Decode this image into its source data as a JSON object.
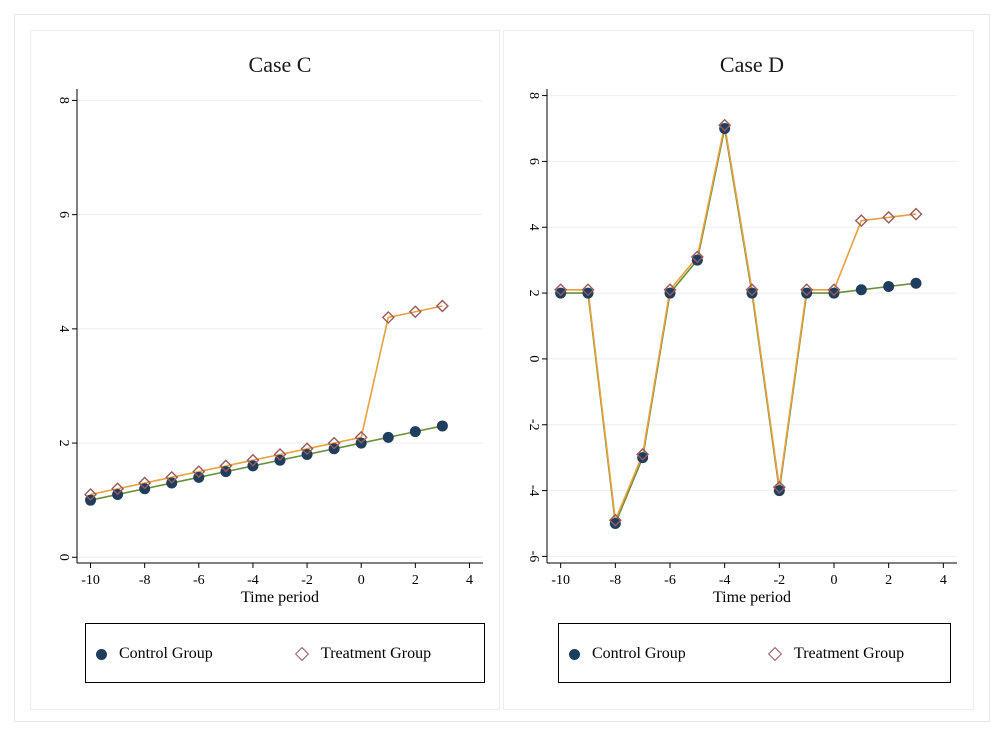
{
  "chart_data": [
    {
      "type": "line",
      "title": "Case C",
      "xlabel": "Time period",
      "ylabel": "",
      "xlim": [
        -10.5,
        4.5
      ],
      "ylim": [
        -0.1,
        8.2
      ],
      "xticks": [
        -10,
        -8,
        -6,
        -4,
        -2,
        0,
        2,
        4
      ],
      "yticks": [
        0,
        2,
        4,
        6,
        8
      ],
      "x": [
        -10,
        -9,
        -8,
        -7,
        -6,
        -5,
        -4,
        -3,
        -2,
        -1,
        0,
        1,
        2,
        3
      ],
      "series": [
        {
          "name": "Control Group",
          "marker": "dot",
          "color": "#1f3d5c",
          "line_color": "#6b8e3a",
          "values": [
            1.0,
            1.1,
            1.2,
            1.3,
            1.4,
            1.5,
            1.6,
            1.7,
            1.8,
            1.9,
            2.0,
            2.1,
            2.2,
            2.3
          ]
        },
        {
          "name": "Treatment Group",
          "marker": "diamond",
          "color": "#9a5a5a",
          "line_color": "#e8a040",
          "values": [
            1.1,
            1.2,
            1.3,
            1.4,
            1.5,
            1.6,
            1.7,
            1.8,
            1.9,
            2.0,
            2.1,
            4.2,
            4.3,
            4.4
          ]
        }
      ],
      "grid": true,
      "legend": "bottom"
    },
    {
      "type": "line",
      "title": "Case D",
      "xlabel": "Time period",
      "ylabel": "",
      "xlim": [
        -10.5,
        4.5
      ],
      "ylim": [
        -6.2,
        8.2
      ],
      "xticks": [
        -10,
        -8,
        -6,
        -4,
        -2,
        0,
        2,
        4
      ],
      "yticks": [
        -6,
        -4,
        -2,
        0,
        2,
        4,
        6,
        8
      ],
      "x": [
        -10,
        -9,
        -8,
        -7,
        -6,
        -5,
        -4,
        -3,
        -2,
        -1,
        0,
        1,
        2,
        3
      ],
      "series": [
        {
          "name": "Control Group",
          "marker": "dot",
          "color": "#1f3d5c",
          "line_color": "#6b8e3a",
          "values": [
            2.0,
            2.0,
            -5.0,
            -3.0,
            2.0,
            3.0,
            7.0,
            2.0,
            -4.0,
            2.0,
            2.0,
            2.1,
            2.2,
            2.3
          ]
        },
        {
          "name": "Treatment Group",
          "marker": "diamond",
          "color": "#9a5a5a",
          "line_color": "#e8a040",
          "values": [
            2.1,
            2.1,
            -4.9,
            -2.9,
            2.1,
            3.1,
            7.1,
            2.1,
            -3.9,
            2.1,
            2.1,
            4.2,
            4.3,
            4.4
          ]
        }
      ],
      "grid": true,
      "legend": "bottom"
    }
  ]
}
